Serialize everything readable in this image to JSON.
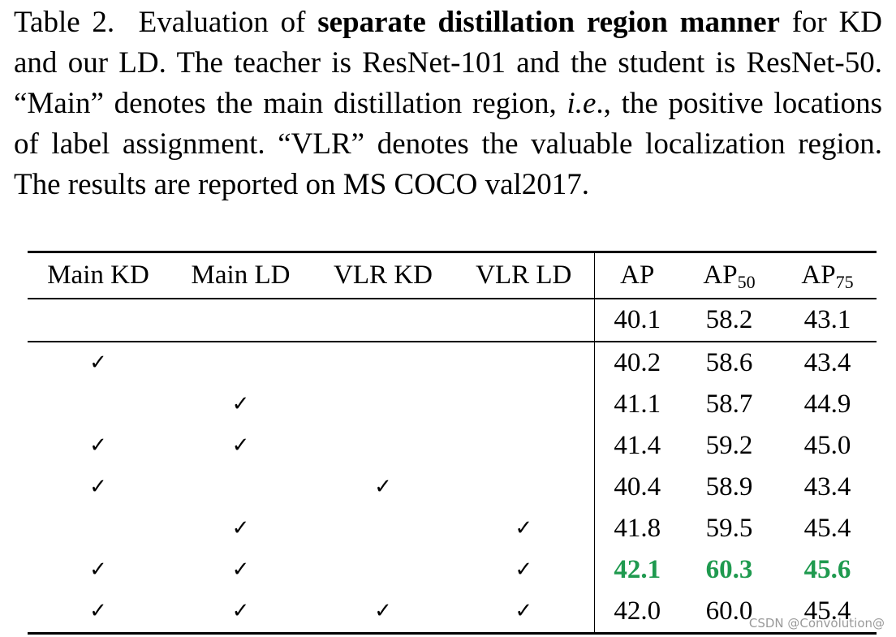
{
  "caption": {
    "label": "Table 2.",
    "pre": "Evaluation of ",
    "bold": "separate distillation region manner",
    "mid": " for KD and our LD. The teacher is ResNet-101 and the student is ResNet-50. “Main” denotes the main distillation region, ",
    "italic": "i.e",
    "post": "., the positive locations of label assignment. “VLR” denotes the valuable localization region. The results are reported on MS COCO val2017."
  },
  "table": {
    "headers": {
      "main_kd": "Main KD",
      "main_ld": "Main LD",
      "vlr_kd": "VLR KD",
      "vlr_ld": "VLR LD",
      "ap": "AP",
      "ap50_base": "AP",
      "ap50_sub": "50",
      "ap75_base": "AP",
      "ap75_sub": "75"
    },
    "check_symbol": "✓",
    "rows": [
      {
        "main_kd": "",
        "main_ld": "",
        "vlr_kd": "",
        "vlr_ld": "",
        "ap": "40.1",
        "ap50": "58.2",
        "ap75": "43.1"
      },
      {
        "main_kd": "✓",
        "main_ld": "",
        "vlr_kd": "",
        "vlr_ld": "",
        "ap": "40.2",
        "ap50": "58.6",
        "ap75": "43.4"
      },
      {
        "main_kd": "",
        "main_ld": "✓",
        "vlr_kd": "",
        "vlr_ld": "",
        "ap": "41.1",
        "ap50": "58.7",
        "ap75": "44.9"
      },
      {
        "main_kd": "✓",
        "main_ld": "✓",
        "vlr_kd": "",
        "vlr_ld": "",
        "ap": "41.4",
        "ap50": "59.2",
        "ap75": "45.0"
      },
      {
        "main_kd": "✓",
        "main_ld": "",
        "vlr_kd": "✓",
        "vlr_ld": "",
        "ap": "40.4",
        "ap50": "58.9",
        "ap75": "43.4"
      },
      {
        "main_kd": "",
        "main_ld": "✓",
        "vlr_kd": "",
        "vlr_ld": "✓",
        "ap": "41.8",
        "ap50": "59.5",
        "ap75": "45.4"
      },
      {
        "main_kd": "✓",
        "main_ld": "✓",
        "vlr_kd": "",
        "vlr_ld": "✓",
        "ap": "42.1",
        "ap50": "60.3",
        "ap75": "45.6"
      },
      {
        "main_kd": "✓",
        "main_ld": "✓",
        "vlr_kd": "✓",
        "vlr_ld": "✓",
        "ap": "42.0",
        "ap50": "60.0",
        "ap75": "45.4"
      }
    ],
    "best_color": "#1f9a4f"
  },
  "watermark": "CSDN @Convolution@"
}
